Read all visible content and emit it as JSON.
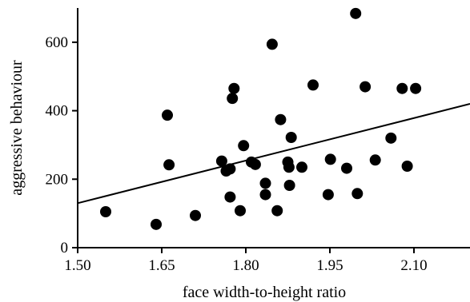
{
  "chart_data": {
    "type": "scatter",
    "title": "",
    "xlabel": "face width-to-height ratio",
    "ylabel": "aggressive behaviour",
    "xlim": [
      1.5,
      2.2
    ],
    "ylim": [
      0,
      700
    ],
    "xticks": [
      1.5,
      1.65,
      1.8,
      1.95,
      2.1
    ],
    "xtick_labels": [
      "1.50",
      "1.65",
      "1.80",
      "1.95",
      "2.10"
    ],
    "yticks": [
      0,
      200,
      400,
      600
    ],
    "ytick_labels": [
      "0",
      "200",
      "400",
      "600"
    ],
    "grid": false,
    "legend": "none",
    "marker_color": "#000000",
    "series": [
      {
        "points": [
          {
            "x": 1.55,
            "y": 105
          },
          {
            "x": 1.64,
            "y": 68
          },
          {
            "x": 1.66,
            "y": 387
          },
          {
            "x": 1.663,
            "y": 242
          },
          {
            "x": 1.71,
            "y": 94
          },
          {
            "x": 1.757,
            "y": 253
          },
          {
            "x": 1.765,
            "y": 224
          },
          {
            "x": 1.772,
            "y": 230
          },
          {
            "x": 1.772,
            "y": 148
          },
          {
            "x": 1.776,
            "y": 436
          },
          {
            "x": 1.779,
            "y": 465
          },
          {
            "x": 1.79,
            "y": 108
          },
          {
            "x": 1.796,
            "y": 298
          },
          {
            "x": 1.81,
            "y": 250
          },
          {
            "x": 1.817,
            "y": 243
          },
          {
            "x": 1.835,
            "y": 188
          },
          {
            "x": 1.835,
            "y": 155
          },
          {
            "x": 1.847,
            "y": 594
          },
          {
            "x": 1.856,
            "y": 108
          },
          {
            "x": 1.862,
            "y": 374
          },
          {
            "x": 1.875,
            "y": 250
          },
          {
            "x": 1.877,
            "y": 235
          },
          {
            "x": 1.878,
            "y": 182
          },
          {
            "x": 1.881,
            "y": 322
          },
          {
            "x": 1.9,
            "y": 235
          },
          {
            "x": 1.92,
            "y": 475
          },
          {
            "x": 1.947,
            "y": 155
          },
          {
            "x": 1.951,
            "y": 258
          },
          {
            "x": 1.98,
            "y": 232
          },
          {
            "x": 1.996,
            "y": 684
          },
          {
            "x": 1.999,
            "y": 158
          },
          {
            "x": 2.013,
            "y": 470
          },
          {
            "x": 2.031,
            "y": 256
          },
          {
            "x": 2.059,
            "y": 320
          },
          {
            "x": 2.079,
            "y": 465
          },
          {
            "x": 2.088,
            "y": 238
          },
          {
            "x": 2.103,
            "y": 465
          }
        ]
      }
    ],
    "trendline": {
      "x": [
        1.5,
        2.2
      ],
      "y": [
        130,
        420
      ]
    }
  }
}
